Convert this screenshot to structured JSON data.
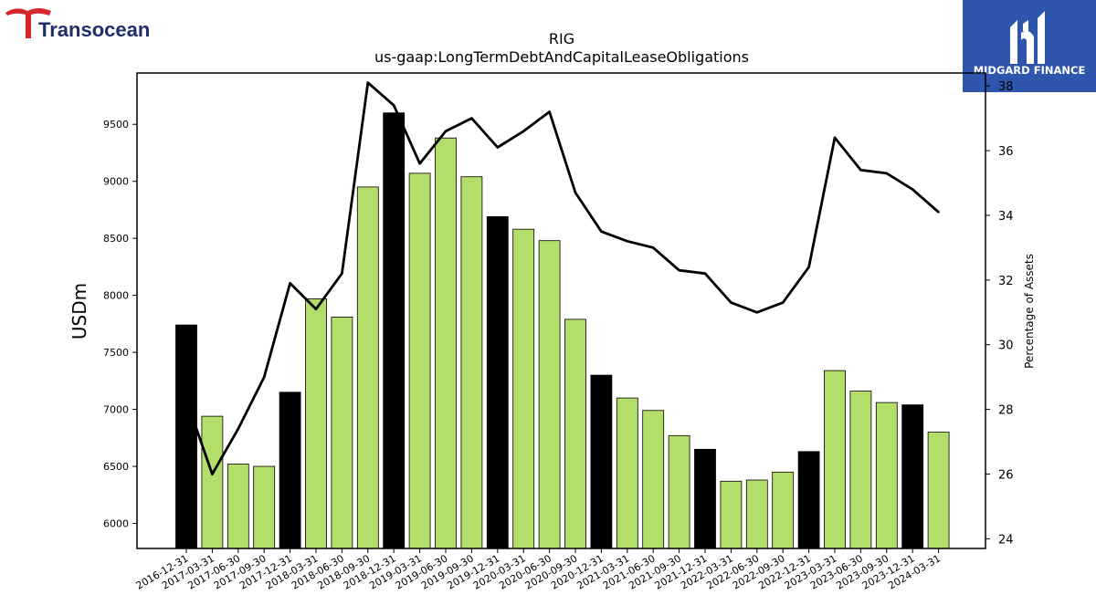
{
  "brand": {
    "left_logo_text": "Transocean",
    "right_logo_text": "MIDGARD FINANCE"
  },
  "colors": {
    "bar_fill": "#b3de69",
    "bar_highlight": "#000000",
    "line": "#000000",
    "logo_red": "#d7262b",
    "logo_navy": "#1f2f6b",
    "badge_blue": "#2e56ac"
  },
  "chart_data": {
    "type": "bar",
    "title": "RIG",
    "subtitle": "us-gaap:LongTermDebtAndCapitalLeaseObligations",
    "ylabel": "USDm",
    "y2label": "Percentage of Assets",
    "ylim": [
      5780,
      9950
    ],
    "y2lim": [
      23.7,
      38.4
    ],
    "yticks": [
      6000,
      6500,
      7000,
      7500,
      8000,
      8500,
      9000,
      9500
    ],
    "y2ticks": [
      24,
      26,
      28,
      30,
      32,
      34,
      36,
      38
    ],
    "categories": [
      "2016-12-31",
      "2017-03-31",
      "2017-06-30",
      "2017-09-30",
      "2017-12-31",
      "2018-03-31",
      "2018-06-30",
      "2018-09-30",
      "2018-12-31",
      "2019-03-31",
      "2019-06-30",
      "2019-09-30",
      "2019-12-31",
      "2020-03-31",
      "2020-06-30",
      "2020-09-30",
      "2020-12-31",
      "2021-03-31",
      "2021-06-30",
      "2021-09-30",
      "2021-12-31",
      "2022-03-31",
      "2022-06-30",
      "2022-09-30",
      "2022-12-31",
      "2023-03-31",
      "2023-06-30",
      "2023-09-30",
      "2023-12-31",
      "2024-03-31"
    ],
    "series": [
      {
        "kind": "bar",
        "values": [
          7740,
          6940,
          6520,
          6500,
          7150,
          7970,
          7810,
          8950,
          9600,
          9070,
          9380,
          9040,
          8690,
          8580,
          8480,
          7790,
          7300,
          7100,
          6990,
          6770,
          6650,
          6370,
          6380,
          6450,
          6630,
          7340,
          7160,
          7060,
          7040,
          6800
        ],
        "highlight": [
          true,
          false,
          false,
          false,
          true,
          false,
          false,
          false,
          true,
          false,
          false,
          false,
          true,
          false,
          false,
          false,
          true,
          false,
          false,
          false,
          true,
          false,
          false,
          false,
          true,
          false,
          false,
          false,
          true,
          false
        ]
      },
      {
        "kind": "line",
        "axis": "right",
        "values": [
          28.3,
          26.0,
          27.4,
          29.0,
          31.9,
          31.1,
          32.2,
          38.1,
          37.4,
          35.6,
          36.6,
          37.0,
          36.1,
          36.6,
          37.2,
          34.7,
          33.5,
          33.2,
          33.0,
          32.3,
          32.2,
          31.3,
          31.0,
          31.3,
          32.4,
          36.4,
          35.4,
          35.3,
          34.8,
          34.1
        ]
      }
    ]
  }
}
